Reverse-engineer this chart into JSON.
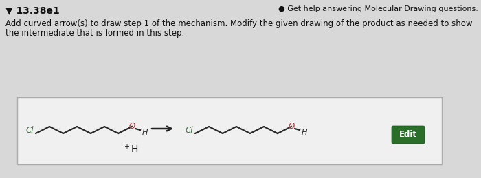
{
  "title": "▼ 13.38e1",
  "help_text": "● Get help answering Molecular Drawing questions.",
  "instruction_line1": "Add curved arrow(s) to draw step 1 of the mechanism. Modify the given drawing of the product as needed to show",
  "instruction_line2": "the intermediate that is formed in this step.",
  "bg_color": "#d8d8d8",
  "box_bg": "#f0f0f0",
  "box_border": "#aaaaaa",
  "edit_btn_color": "#2a6e2a",
  "edit_btn_text": "Edit",
  "edit_btn_text_color": "#ffffff",
  "carbon_color": "#2a2a2a",
  "cl_color": "#3a6e3a",
  "o_color": "#cc2222",
  "h_color": "#2a2a2a",
  "plus_h_color": "#111111",
  "title_fontsize": 10,
  "help_fontsize": 8,
  "instruction_fontsize": 8.5
}
